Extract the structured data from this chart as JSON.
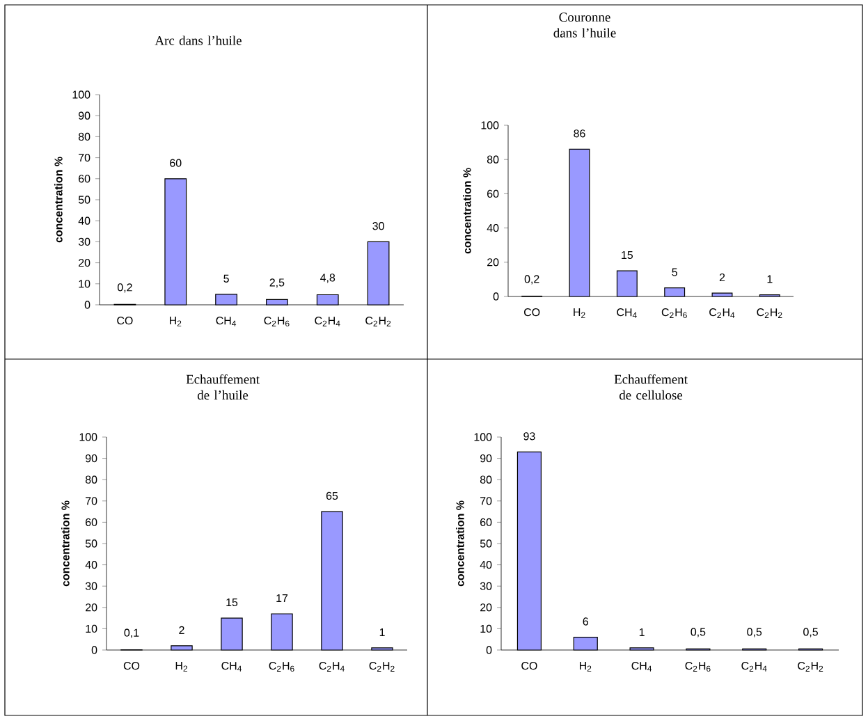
{
  "chart_data": [
    {
      "type": "bar",
      "title": "Arc dans l’huile",
      "ylabel": "concentration %",
      "categories": [
        "CO",
        "H$_{2}$",
        "CH$_{4}$",
        "C$_{2}$H$_{6}$",
        "C$_{2}$H$_{4}$",
        "C$_{2}$H$_{2}$"
      ],
      "values": [
        0.2,
        60,
        5,
        2.5,
        4.8,
        30
      ],
      "value_labels": [
        "0,2",
        "60",
        "5",
        "2,5",
        "4,8",
        "30"
      ],
      "color": "#9999ff",
      "ylim": [
        0,
        100
      ],
      "yticks": [
        0,
        10,
        20,
        30,
        40,
        50,
        60,
        70,
        80,
        90,
        100
      ]
    },
    {
      "type": "bar",
      "title": "Couronne dans l’huile",
      "ylabel": "concentration %",
      "categories": [
        "CO",
        "H$_{2}$",
        "CH$_{4}$",
        "C$_{2}$H$_{6}$",
        "C$_{2}$H$_{4}$",
        "C$_{2}$H$_{2}$"
      ],
      "values": [
        0.2,
        86,
        15,
        5,
        2,
        1
      ],
      "value_labels": [
        "0,2",
        "86",
        "15",
        "5",
        "2",
        "1"
      ],
      "color": "#9999ff",
      "ylim": [
        0,
        100
      ],
      "yticks": [
        0,
        20,
        40,
        60,
        80,
        100
      ]
    },
    {
      "type": "bar",
      "title": "Echauffement de l’huile",
      "ylabel": "concentration %",
      "categories": [
        "CO",
        "H$_{2}$",
        "CH$_{4}$",
        "C$_{2}$H$_{6}$",
        "C$_{2}$H$_{4}$",
        "C$_{2}$H$_{2}$"
      ],
      "values": [
        0.1,
        2,
        15,
        17,
        65,
        1
      ],
      "value_labels": [
        "0,1",
        "2",
        "15",
        "17",
        "65",
        "1"
      ],
      "color": "#9999ff",
      "ylim": [
        0,
        100
      ],
      "yticks": [
        0,
        10,
        20,
        30,
        40,
        50,
        60,
        70,
        80,
        90,
        100
      ]
    },
    {
      "type": "bar",
      "title": "Echauffement de cellulose",
      "ylabel": "concentration %",
      "categories": [
        "CO",
        "H$_{2}$",
        "CH$_{4}$",
        "C$_{2}$H$_{6}$",
        "C$_{2}$H$_{4}$",
        "C$_{2}$H$_{2}$"
      ],
      "values": [
        93,
        6,
        1,
        0.5,
        0.5,
        0.5
      ],
      "value_labels": [
        "93",
        "6",
        "1",
        "0,5",
        "0,5",
        "0,5"
      ],
      "color": "#9999ff",
      "ylim": [
        0,
        100
      ],
      "yticks": [
        0,
        10,
        20,
        30,
        40,
        50,
        60,
        70,
        80,
        90,
        100
      ]
    }
  ]
}
